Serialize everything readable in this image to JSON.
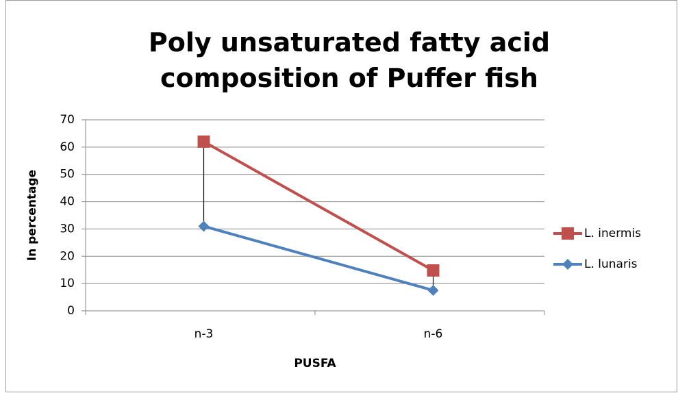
{
  "chart_data": {
    "type": "line",
    "title": "Poly unsaturated fatty acid composition of Puffer fish",
    "x_label": "PUSFA",
    "y_label": "In percentage",
    "categories": [
      "n-3",
      "n-6"
    ],
    "series": [
      {
        "name": "L. inermis",
        "color": "#c0504d",
        "marker": "square",
        "values": [
          62,
          14.8
        ]
      },
      {
        "name": "L. lunaris",
        "color": "#4f81bd",
        "marker": "diamond",
        "values": [
          31,
          7.5
        ]
      }
    ],
    "ylim": [
      0,
      70
    ],
    "yticks": [
      0,
      10,
      20,
      30,
      40,
      50,
      60,
      70
    ],
    "grid": true,
    "high_low_lines": true,
    "legend": "right"
  }
}
